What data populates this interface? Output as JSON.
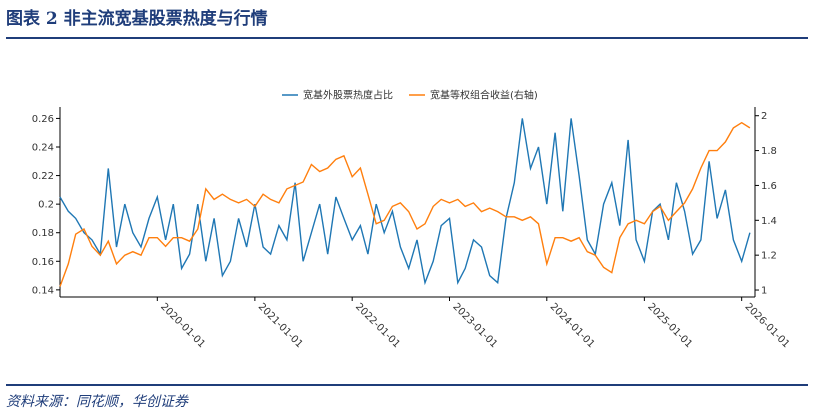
{
  "header": {
    "title": "图表 2   非主流宽基股票热度与行情"
  },
  "footer": {
    "source": "资料来源：同花顺，华创证券"
  },
  "chart_data": {
    "type": "line",
    "x": [
      "2019-01-01",
      "2019-02-01",
      "2019-03-01",
      "2019-04-01",
      "2019-05-01",
      "2019-06-01",
      "2019-07-01",
      "2019-08-01",
      "2019-09-01",
      "2019-10-01",
      "2019-11-01",
      "2019-12-01",
      "2020-01-01",
      "2020-02-01",
      "2020-03-01",
      "2020-04-01",
      "2020-05-01",
      "2020-06-01",
      "2020-07-01",
      "2020-08-01",
      "2020-09-01",
      "2020-10-01",
      "2020-11-01",
      "2020-12-01",
      "2021-01-01",
      "2021-02-01",
      "2021-03-01",
      "2021-04-01",
      "2021-05-01",
      "2021-06-01",
      "2021-07-01",
      "2021-08-01",
      "2021-09-01",
      "2021-10-01",
      "2021-11-01",
      "2021-12-01",
      "2022-01-01",
      "2022-02-01",
      "2022-03-01",
      "2022-04-01",
      "2022-05-01",
      "2022-06-01",
      "2022-07-01",
      "2022-08-01",
      "2022-09-01",
      "2022-10-01",
      "2022-11-01",
      "2022-12-01",
      "2023-01-01",
      "2023-02-01",
      "2023-03-01",
      "2023-04-01",
      "2023-05-01",
      "2023-06-01",
      "2023-07-01",
      "2023-08-01",
      "2023-09-01",
      "2023-10-01",
      "2023-11-01",
      "2023-12-01",
      "2024-01-01",
      "2024-02-01",
      "2024-03-01",
      "2024-04-01",
      "2024-05-01",
      "2024-06-01",
      "2024-07-01",
      "2024-08-01",
      "2024-09-01",
      "2024-10-01",
      "2024-11-01",
      "2024-12-01",
      "2025-01-01",
      "2025-02-01",
      "2025-03-01",
      "2025-04-01",
      "2025-05-01",
      "2025-06-01",
      "2025-07-01",
      "2025-08-01",
      "2025-09-01",
      "2025-10-01",
      "2025-11-01",
      "2025-12-01",
      "2026-01-01",
      "2026-02-01"
    ],
    "series": [
      {
        "name": "宽基外股票热度占比",
        "color": "#1f77b4",
        "axis": "y",
        "values": [
          0.205,
          0.195,
          0.19,
          0.18,
          0.175,
          0.165,
          0.225,
          0.17,
          0.2,
          0.18,
          0.17,
          0.19,
          0.205,
          0.175,
          0.2,
          0.155,
          0.165,
          0.2,
          0.16,
          0.19,
          0.15,
          0.16,
          0.19,
          0.17,
          0.2,
          0.17,
          0.165,
          0.185,
          0.175,
          0.215,
          0.16,
          0.18,
          0.2,
          0.165,
          0.205,
          0.19,
          0.175,
          0.185,
          0.165,
          0.2,
          0.18,
          0.195,
          0.17,
          0.155,
          0.175,
          0.145,
          0.16,
          0.185,
          0.19,
          0.145,
          0.155,
          0.175,
          0.17,
          0.15,
          0.145,
          0.19,
          0.215,
          0.26,
          0.225,
          0.24,
          0.2,
          0.25,
          0.195,
          0.26,
          0.22,
          0.175,
          0.165,
          0.2,
          0.215,
          0.185,
          0.245,
          0.175,
          0.16,
          0.195,
          0.2,
          0.175,
          0.215,
          0.195,
          0.165,
          0.175,
          0.23,
          0.19,
          0.21,
          0.175,
          0.16,
          0.18
        ]
      },
      {
        "name": "宽基等权组合收益(右轴)",
        "color": "#ff7f0e",
        "axis": "y2",
        "values": [
          1.02,
          1.15,
          1.32,
          1.35,
          1.25,
          1.2,
          1.28,
          1.15,
          1.2,
          1.22,
          1.2,
          1.3,
          1.3,
          1.25,
          1.3,
          1.3,
          1.28,
          1.35,
          1.58,
          1.52,
          1.55,
          1.52,
          1.5,
          1.52,
          1.48,
          1.55,
          1.52,
          1.5,
          1.58,
          1.6,
          1.62,
          1.72,
          1.68,
          1.7,
          1.75,
          1.77,
          1.65,
          1.7,
          1.55,
          1.38,
          1.4,
          1.48,
          1.5,
          1.45,
          1.35,
          1.38,
          1.48,
          1.52,
          1.5,
          1.52,
          1.48,
          1.5,
          1.45,
          1.47,
          1.45,
          1.42,
          1.42,
          1.4,
          1.42,
          1.38,
          1.15,
          1.3,
          1.3,
          1.28,
          1.3,
          1.22,
          1.2,
          1.13,
          1.1,
          1.3,
          1.38,
          1.4,
          1.38,
          1.45,
          1.48,
          1.4,
          1.45,
          1.5,
          1.58,
          1.7,
          1.8,
          1.8,
          1.85,
          1.93,
          1.96,
          1.93
        ]
      }
    ],
    "xlim": [
      "2019-01-01",
      "2026-02-20"
    ],
    "xticks": [
      "2020-01-01",
      "2021-01-01",
      "2022-01-01",
      "2023-01-01",
      "2024-01-01",
      "2025-01-01",
      "2026-01-01"
    ],
    "ylim": [
      0.135,
      0.268
    ],
    "yticks": [
      0.14,
      0.16,
      0.18,
      0.2,
      0.22,
      0.24,
      0.26
    ],
    "y2lim": [
      0.96,
      2.05
    ],
    "y2ticks": [
      1,
      1.2,
      1.4,
      1.6,
      1.8,
      2
    ]
  }
}
